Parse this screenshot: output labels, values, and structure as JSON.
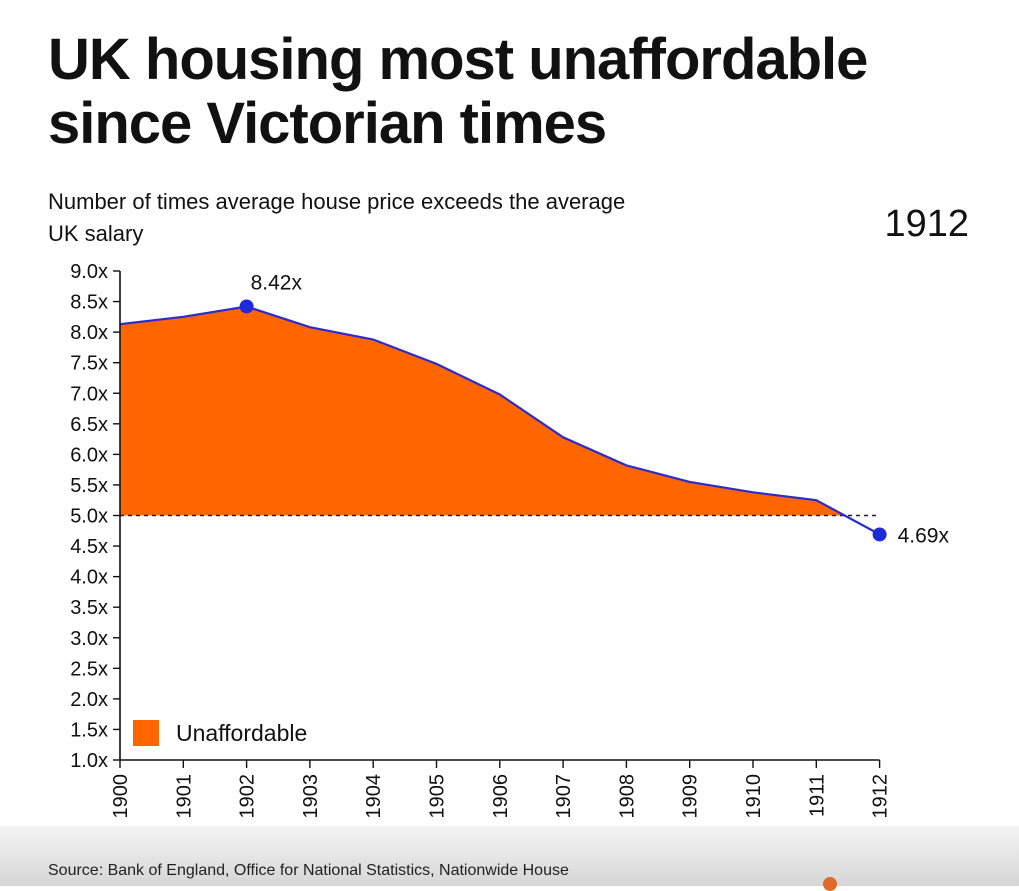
{
  "title": "UK housing most unaffordable since Victorian times",
  "subtitle": "Number of times average house price exceeds the average UK salary",
  "year_label": "1912",
  "source": "Source: Bank of England, Office for National Statistics, Nationwide House",
  "colors": {
    "area": "#ff6600",
    "line": "#2b2bcf",
    "marker": "#1f2bd9",
    "text": "#111111"
  },
  "chart_data": {
    "type": "area",
    "x": [
      "1900",
      "1901",
      "1902",
      "1903",
      "1904",
      "1905",
      "1906",
      "1907",
      "1908",
      "1909",
      "1910",
      "1911",
      "1912"
    ],
    "values": [
      8.13,
      8.25,
      8.42,
      8.08,
      7.88,
      7.48,
      6.98,
      6.28,
      5.82,
      5.55,
      5.38,
      5.25,
      4.69
    ],
    "threshold": 5.0,
    "ylim": [
      1.0,
      9.0
    ],
    "yticks": [
      "1.0x",
      "1.5x",
      "2.0x",
      "2.5x",
      "3.0x",
      "3.5x",
      "4.0x",
      "4.5x",
      "5.0x",
      "5.5x",
      "6.0x",
      "6.5x",
      "7.0x",
      "7.5x",
      "8.0x",
      "8.5x",
      "9.0x"
    ],
    "ytick_values": [
      1.0,
      1.5,
      2.0,
      2.5,
      3.0,
      3.5,
      4.0,
      4.5,
      5.0,
      5.5,
      6.0,
      6.5,
      7.0,
      7.5,
      8.0,
      8.5,
      9.0
    ],
    "annotations": [
      {
        "x": "1902",
        "value": 8.42,
        "text": "8.42x"
      },
      {
        "x": "1912",
        "value": 4.69,
        "text": "4.69x"
      }
    ],
    "legend": {
      "label": "Unaffordable",
      "placement": "bottom-left"
    },
    "grid": false,
    "title": "",
    "xlabel": "",
    "ylabel": ""
  }
}
